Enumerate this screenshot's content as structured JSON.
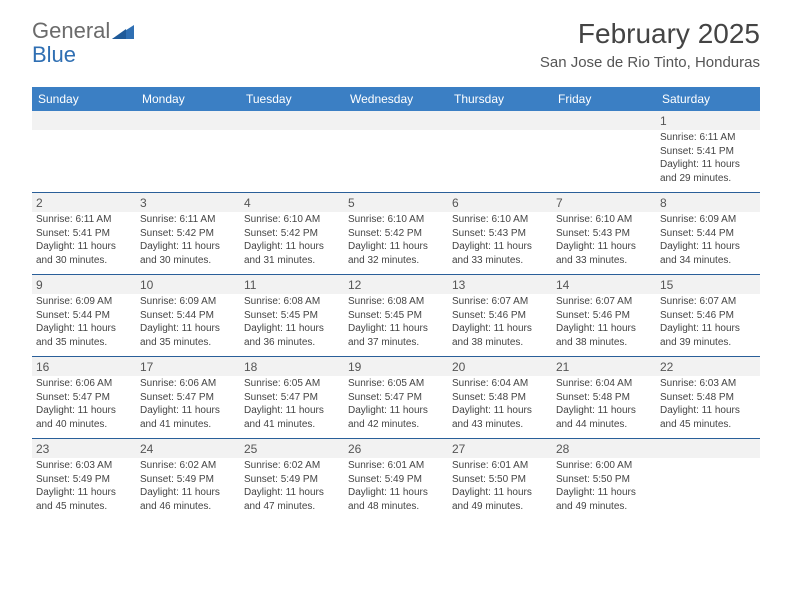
{
  "logo": {
    "text1": "General",
    "text2": "Blue"
  },
  "title": "February 2025",
  "location": "San Jose de Rio Tinto, Honduras",
  "colors": {
    "header_bg": "#3b7fc4",
    "header_text": "#ffffff",
    "row_divider": "#2a5f99",
    "daynum_bg": "#f2f2f2",
    "logo_gray": "#6b6b6b",
    "logo_blue": "#2f6fb3"
  },
  "day_names": [
    "Sunday",
    "Monday",
    "Tuesday",
    "Wednesday",
    "Thursday",
    "Friday",
    "Saturday"
  ],
  "weeks": [
    [
      null,
      null,
      null,
      null,
      null,
      null,
      {
        "n": "1",
        "sr": "6:11 AM",
        "ss": "5:41 PM",
        "dl": "11 hours and 29 minutes."
      }
    ],
    [
      {
        "n": "2",
        "sr": "6:11 AM",
        "ss": "5:41 PM",
        "dl": "11 hours and 30 minutes."
      },
      {
        "n": "3",
        "sr": "6:11 AM",
        "ss": "5:42 PM",
        "dl": "11 hours and 30 minutes."
      },
      {
        "n": "4",
        "sr": "6:10 AM",
        "ss": "5:42 PM",
        "dl": "11 hours and 31 minutes."
      },
      {
        "n": "5",
        "sr": "6:10 AM",
        "ss": "5:42 PM",
        "dl": "11 hours and 32 minutes."
      },
      {
        "n": "6",
        "sr": "6:10 AM",
        "ss": "5:43 PM",
        "dl": "11 hours and 33 minutes."
      },
      {
        "n": "7",
        "sr": "6:10 AM",
        "ss": "5:43 PM",
        "dl": "11 hours and 33 minutes."
      },
      {
        "n": "8",
        "sr": "6:09 AM",
        "ss": "5:44 PM",
        "dl": "11 hours and 34 minutes."
      }
    ],
    [
      {
        "n": "9",
        "sr": "6:09 AM",
        "ss": "5:44 PM",
        "dl": "11 hours and 35 minutes."
      },
      {
        "n": "10",
        "sr": "6:09 AM",
        "ss": "5:44 PM",
        "dl": "11 hours and 35 minutes."
      },
      {
        "n": "11",
        "sr": "6:08 AM",
        "ss": "5:45 PM",
        "dl": "11 hours and 36 minutes."
      },
      {
        "n": "12",
        "sr": "6:08 AM",
        "ss": "5:45 PM",
        "dl": "11 hours and 37 minutes."
      },
      {
        "n": "13",
        "sr": "6:07 AM",
        "ss": "5:46 PM",
        "dl": "11 hours and 38 minutes."
      },
      {
        "n": "14",
        "sr": "6:07 AM",
        "ss": "5:46 PM",
        "dl": "11 hours and 38 minutes."
      },
      {
        "n": "15",
        "sr": "6:07 AM",
        "ss": "5:46 PM",
        "dl": "11 hours and 39 minutes."
      }
    ],
    [
      {
        "n": "16",
        "sr": "6:06 AM",
        "ss": "5:47 PM",
        "dl": "11 hours and 40 minutes."
      },
      {
        "n": "17",
        "sr": "6:06 AM",
        "ss": "5:47 PM",
        "dl": "11 hours and 41 minutes."
      },
      {
        "n": "18",
        "sr": "6:05 AM",
        "ss": "5:47 PM",
        "dl": "11 hours and 41 minutes."
      },
      {
        "n": "19",
        "sr": "6:05 AM",
        "ss": "5:47 PM",
        "dl": "11 hours and 42 minutes."
      },
      {
        "n": "20",
        "sr": "6:04 AM",
        "ss": "5:48 PM",
        "dl": "11 hours and 43 minutes."
      },
      {
        "n": "21",
        "sr": "6:04 AM",
        "ss": "5:48 PM",
        "dl": "11 hours and 44 minutes."
      },
      {
        "n": "22",
        "sr": "6:03 AM",
        "ss": "5:48 PM",
        "dl": "11 hours and 45 minutes."
      }
    ],
    [
      {
        "n": "23",
        "sr": "6:03 AM",
        "ss": "5:49 PM",
        "dl": "11 hours and 45 minutes."
      },
      {
        "n": "24",
        "sr": "6:02 AM",
        "ss": "5:49 PM",
        "dl": "11 hours and 46 minutes."
      },
      {
        "n": "25",
        "sr": "6:02 AM",
        "ss": "5:49 PM",
        "dl": "11 hours and 47 minutes."
      },
      {
        "n": "26",
        "sr": "6:01 AM",
        "ss": "5:49 PM",
        "dl": "11 hours and 48 minutes."
      },
      {
        "n": "27",
        "sr": "6:01 AM",
        "ss": "5:50 PM",
        "dl": "11 hours and 49 minutes."
      },
      {
        "n": "28",
        "sr": "6:00 AM",
        "ss": "5:50 PM",
        "dl": "11 hours and 49 minutes."
      },
      null
    ]
  ],
  "labels": {
    "sunrise": "Sunrise:",
    "sunset": "Sunset:",
    "daylight": "Daylight:"
  }
}
